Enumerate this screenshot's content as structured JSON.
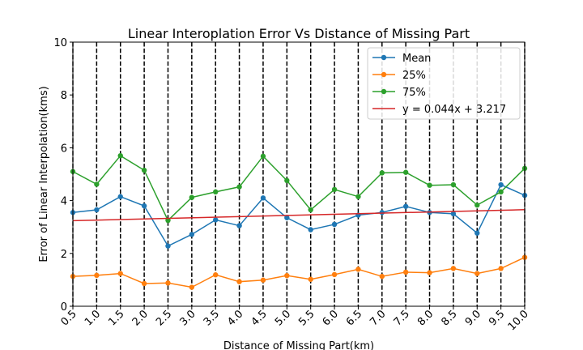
{
  "chart_data": {
    "type": "line",
    "title": "Linear Interoplation Error Vs Distance of Missing Part",
    "xlabel": "Distance of Missing Part(km)",
    "ylabel": "Error of Linear Interpolation(kms)",
    "xlim": [
      0.5,
      10.0
    ],
    "ylim": [
      0,
      10
    ],
    "grid": false,
    "legend_position": "top-right",
    "x": [
      0.5,
      1.0,
      1.5,
      2.0,
      2.5,
      3.0,
      3.5,
      4.0,
      4.5,
      5.0,
      5.5,
      6.0,
      6.5,
      7.0,
      7.5,
      8.0,
      8.5,
      9.0,
      9.5,
      10.0
    ],
    "x_tick_labels": [
      "0.5",
      "1.0",
      "1.5",
      "2.0",
      "2.5",
      "3.0",
      "3.5",
      "4.0",
      "4.5",
      "5.0",
      "5.5",
      "6.0",
      "6.5",
      "7.0",
      "7.5",
      "8.0",
      "8.5",
      "9.0",
      "9.5",
      "10.0"
    ],
    "y_ticks": [
      0,
      2,
      4,
      6,
      8,
      10
    ],
    "y_tick_labels": [
      "0",
      "2",
      "4",
      "6",
      "8",
      "10"
    ],
    "vertical_dashed_lines_at": [
      0.5,
      1.0,
      1.5,
      2.0,
      2.5,
      3.0,
      3.5,
      4.0,
      4.5,
      5.0,
      5.5,
      6.0,
      6.5,
      7.0,
      7.5,
      8.0,
      8.5,
      9.0,
      9.5,
      10.0
    ],
    "series": [
      {
        "name": "Mean",
        "color": "#1f77b4",
        "marker": "circle",
        "values": [
          3.55,
          3.65,
          4.15,
          3.8,
          2.28,
          2.72,
          3.27,
          3.05,
          4.1,
          3.35,
          2.9,
          3.1,
          3.45,
          3.55,
          3.78,
          3.55,
          3.5,
          2.77,
          4.6,
          4.2
        ]
      },
      {
        "name": "25%",
        "color": "#ff7f0e",
        "marker": "circle",
        "values": [
          1.13,
          1.17,
          1.24,
          0.86,
          0.88,
          0.72,
          1.19,
          0.93,
          0.99,
          1.16,
          1.02,
          1.2,
          1.4,
          1.13,
          1.29,
          1.27,
          1.43,
          1.24,
          1.43,
          1.85
        ]
      },
      {
        "name": "75%",
        "color": "#2ca02c",
        "marker": "circle",
        "values": [
          5.1,
          4.62,
          5.7,
          5.15,
          3.25,
          4.12,
          4.33,
          4.52,
          5.68,
          4.76,
          3.65,
          4.42,
          4.15,
          5.05,
          5.07,
          4.58,
          4.6,
          3.83,
          4.33,
          5.22
        ]
      },
      {
        "name": "y = 0.044x + 3.217",
        "color": "#d62728",
        "marker": "none",
        "fit": {
          "slope": 0.044,
          "intercept": 3.217
        }
      }
    ]
  }
}
